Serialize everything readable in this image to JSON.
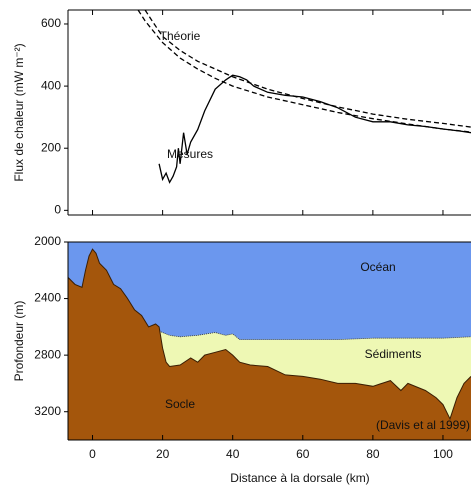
{
  "chart_data": [
    {
      "type": "line",
      "y_label": "Flux de chaleur (mW m⁻²)",
      "xlim": [
        -7,
        108
      ],
      "ylim": [
        -15,
        645
      ],
      "xticks": [
        0,
        20,
        40,
        60,
        80,
        100
      ],
      "yticks": [
        0,
        200,
        400,
        600
      ],
      "annotations": [
        "Théorie",
        "Mesures"
      ],
      "series": [
        {
          "name": "Théorie",
          "color": "#000000",
          "dashed": true,
          "x": [
            15,
            17,
            20,
            25,
            30,
            35,
            40,
            50,
            60,
            70,
            80,
            90,
            100,
            108
          ],
          "values": [
            645,
            610,
            560,
            515,
            480,
            455,
            430,
            390,
            360,
            333,
            310,
            293,
            280,
            268
          ]
        },
        {
          "name": "Théorie",
          "color": "#000000",
          "dashed": true,
          "x": [
            13,
            15,
            20,
            25,
            30,
            35,
            40,
            50,
            60,
            70,
            80,
            90,
            100,
            108
          ],
          "values": [
            645,
            610,
            540,
            490,
            455,
            425,
            400,
            365,
            340,
            315,
            295,
            278,
            262,
            252
          ]
        },
        {
          "name": "Mesures",
          "color": "#000000",
          "dashed": false,
          "x": [
            19,
            20,
            21,
            22,
            23,
            24,
            24.5,
            25,
            26,
            27,
            28,
            30,
            32,
            35,
            38,
            40,
            42,
            44,
            46,
            50,
            55,
            60,
            65,
            70,
            75,
            80,
            85,
            90,
            95,
            100,
            105,
            108
          ],
          "values": [
            150,
            100,
            120,
            90,
            110,
            140,
            200,
            150,
            250,
            180,
            220,
            260,
            320,
            390,
            420,
            435,
            430,
            420,
            400,
            380,
            370,
            365,
            350,
            330,
            300,
            285,
            285,
            275,
            270,
            262,
            255,
            250
          ]
        }
      ]
    },
    {
      "type": "area",
      "x_label": "Distance à la dorsale (km)",
      "y_label": "Profondeur (m)",
      "xlim": [
        -7,
        108
      ],
      "ylim": [
        2000,
        3400
      ],
      "y_inverted": true,
      "xticks": [
        0,
        20,
        40,
        60,
        80,
        100
      ],
      "yticks": [
        2000,
        2400,
        2800,
        3200
      ],
      "background": {
        "name": "Océan",
        "color": "#6b97ee"
      },
      "annotations": [
        "Socle",
        "(Davis et al 1999)"
      ],
      "series": [
        {
          "name": "Sédiments",
          "color": "#eef8b4",
          "x": [
            19,
            22,
            25,
            30,
            35,
            38,
            40,
            42,
            50,
            60,
            70,
            80,
            90,
            100,
            108
          ],
          "values": [
            2630,
            2660,
            2670,
            2660,
            2640,
            2660,
            2650,
            2690,
            2690,
            2690,
            2690,
            2680,
            2680,
            2680,
            2670
          ]
        },
        {
          "name": "Socle",
          "color": "#a4560c",
          "x": [
            -7,
            -5,
            -3,
            -2,
            -1,
            0,
            1,
            2,
            4,
            6,
            8,
            10,
            12,
            14,
            16,
            18,
            19,
            20,
            21,
            22,
            25,
            28,
            30,
            32,
            35,
            38,
            40,
            42,
            45,
            50,
            55,
            60,
            65,
            70,
            75,
            80,
            85,
            88,
            90,
            95,
            98,
            100,
            102,
            104,
            106,
            108
          ],
          "values": [
            2250,
            2300,
            2320,
            2200,
            2100,
            2050,
            2080,
            2150,
            2200,
            2300,
            2330,
            2400,
            2480,
            2520,
            2600,
            2580,
            2600,
            2750,
            2850,
            2880,
            2870,
            2820,
            2850,
            2800,
            2780,
            2760,
            2800,
            2850,
            2870,
            2880,
            2940,
            2950,
            2970,
            3000,
            3000,
            3020,
            2980,
            3050,
            3000,
            3050,
            3100,
            3150,
            3250,
            3100,
            3000,
            2950
          ]
        }
      ]
    }
  ]
}
